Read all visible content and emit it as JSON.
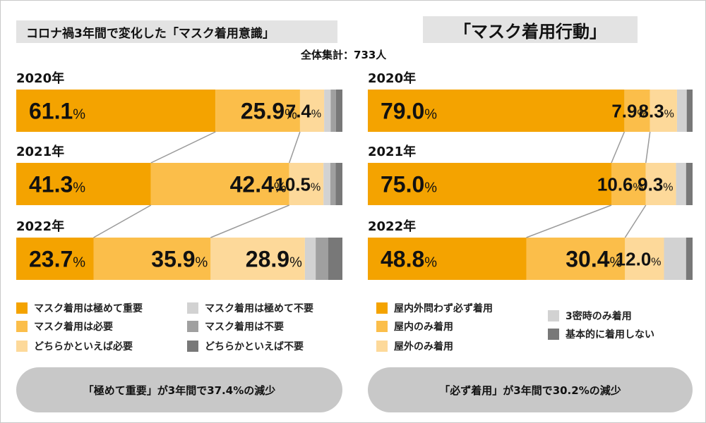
{
  "titles": {
    "left": "コロナ禍3年間で変化した「マスク着用意識」",
    "right": "「マスク着用行動」",
    "total": "全体集計：733人"
  },
  "chart_data": [
    {
      "type": "bar",
      "orientation": "horizontal-stacked-100",
      "title": "コロナ禍3年間で変化した「マスク着用意識」",
      "categories": [
        "2020年",
        "2021年",
        "2022年"
      ],
      "series": [
        {
          "name": "マスク着用は極めて重要",
          "values": [
            61.1,
            41.3,
            23.7
          ],
          "labels": [
            "61.1",
            "41.3",
            "23.7"
          ],
          "color": "#f4a300"
        },
        {
          "name": "マスク着用は必要",
          "values": [
            25.9,
            42.4,
            35.9
          ],
          "labels": [
            "25.9",
            "42.4",
            "35.9"
          ],
          "color": "#fbbe4a"
        },
        {
          "name": "どちらかといえば必要",
          "values": [
            7.4,
            10.5,
            28.9
          ],
          "labels": [
            "7.4",
            "10.5",
            "28.9"
          ],
          "color": "#fdd99a"
        },
        {
          "name": "マスク着用は極めて不要",
          "values": [
            2.0,
            2.1,
            3.3
          ],
          "labels": [
            "",
            "",
            ""
          ],
          "color": "#d2d2d2"
        },
        {
          "name": "マスク着用は不要",
          "values": [
            1.6,
            1.6,
            3.8
          ],
          "labels": [
            "",
            "",
            ""
          ],
          "color": "#a0a0a0"
        },
        {
          "name": "どちらかといえば不要",
          "values": [
            2.0,
            2.1,
            4.4
          ],
          "labels": [
            "",
            "",
            ""
          ],
          "color": "#787878"
        }
      ],
      "label_unit": "%"
    },
    {
      "type": "bar",
      "orientation": "horizontal-stacked-100",
      "title": "「マスク着用行動」",
      "categories": [
        "2020年",
        "2021年",
        "2022年"
      ],
      "series": [
        {
          "name": "屋内外問わず必ず着用",
          "values": [
            79.0,
            75.0,
            48.8
          ],
          "labels": [
            "79.0",
            "75.0",
            "48.8"
          ],
          "color": "#f4a300"
        },
        {
          "name": "屋内のみ着用",
          "values": [
            7.9,
            10.6,
            30.4
          ],
          "labels": [
            "7.9",
            "10.6",
            "30.4"
          ],
          "color": "#fbbe4a"
        },
        {
          "name": "屋外のみ着用",
          "values": [
            8.3,
            9.3,
            12.0
          ],
          "labels": [
            "8.3",
            "9.3",
            "12.0"
          ],
          "color": "#fdd99a"
        },
        {
          "name": "3密時のみ着用",
          "values": [
            3.0,
            3.1,
            6.8
          ],
          "labels": [
            "",
            "",
            ""
          ],
          "color": "#d2d2d2"
        },
        {
          "name": "基本的に着用しない",
          "values": [
            1.8,
            2.0,
            2.0
          ],
          "labels": [
            "",
            "",
            ""
          ],
          "color": "#787878"
        }
      ],
      "label_unit": "%"
    }
  ],
  "legends": {
    "left": [
      {
        "label": "マスク着用は極めて重要",
        "color": "#f4a300"
      },
      {
        "label": "マスク着用は必要",
        "color": "#fbbe4a"
      },
      {
        "label": "どちらかといえば必要",
        "color": "#fdd99a"
      },
      {
        "label": "マスク着用は極めて不要",
        "color": "#d2d2d2"
      },
      {
        "label": "マスク着用は不要",
        "color": "#a0a0a0"
      },
      {
        "label": "どちらかといえば不要",
        "color": "#787878"
      }
    ],
    "right": [
      {
        "label": "屋内外問わず必ず着用",
        "color": "#f4a300"
      },
      {
        "label": "屋内のみ着用",
        "color": "#fbbe4a"
      },
      {
        "label": "屋外のみ着用",
        "color": "#fdd99a"
      },
      {
        "label": "3密時のみ着用",
        "color": "#d2d2d2"
      },
      {
        "label": "基本的に着用しない",
        "color": "#787878"
      }
    ]
  },
  "summaries": {
    "left": "「極めて重要」が3年間で37.4%の減少",
    "right": "「必ず着用」が3年間で30.2%の減少"
  }
}
